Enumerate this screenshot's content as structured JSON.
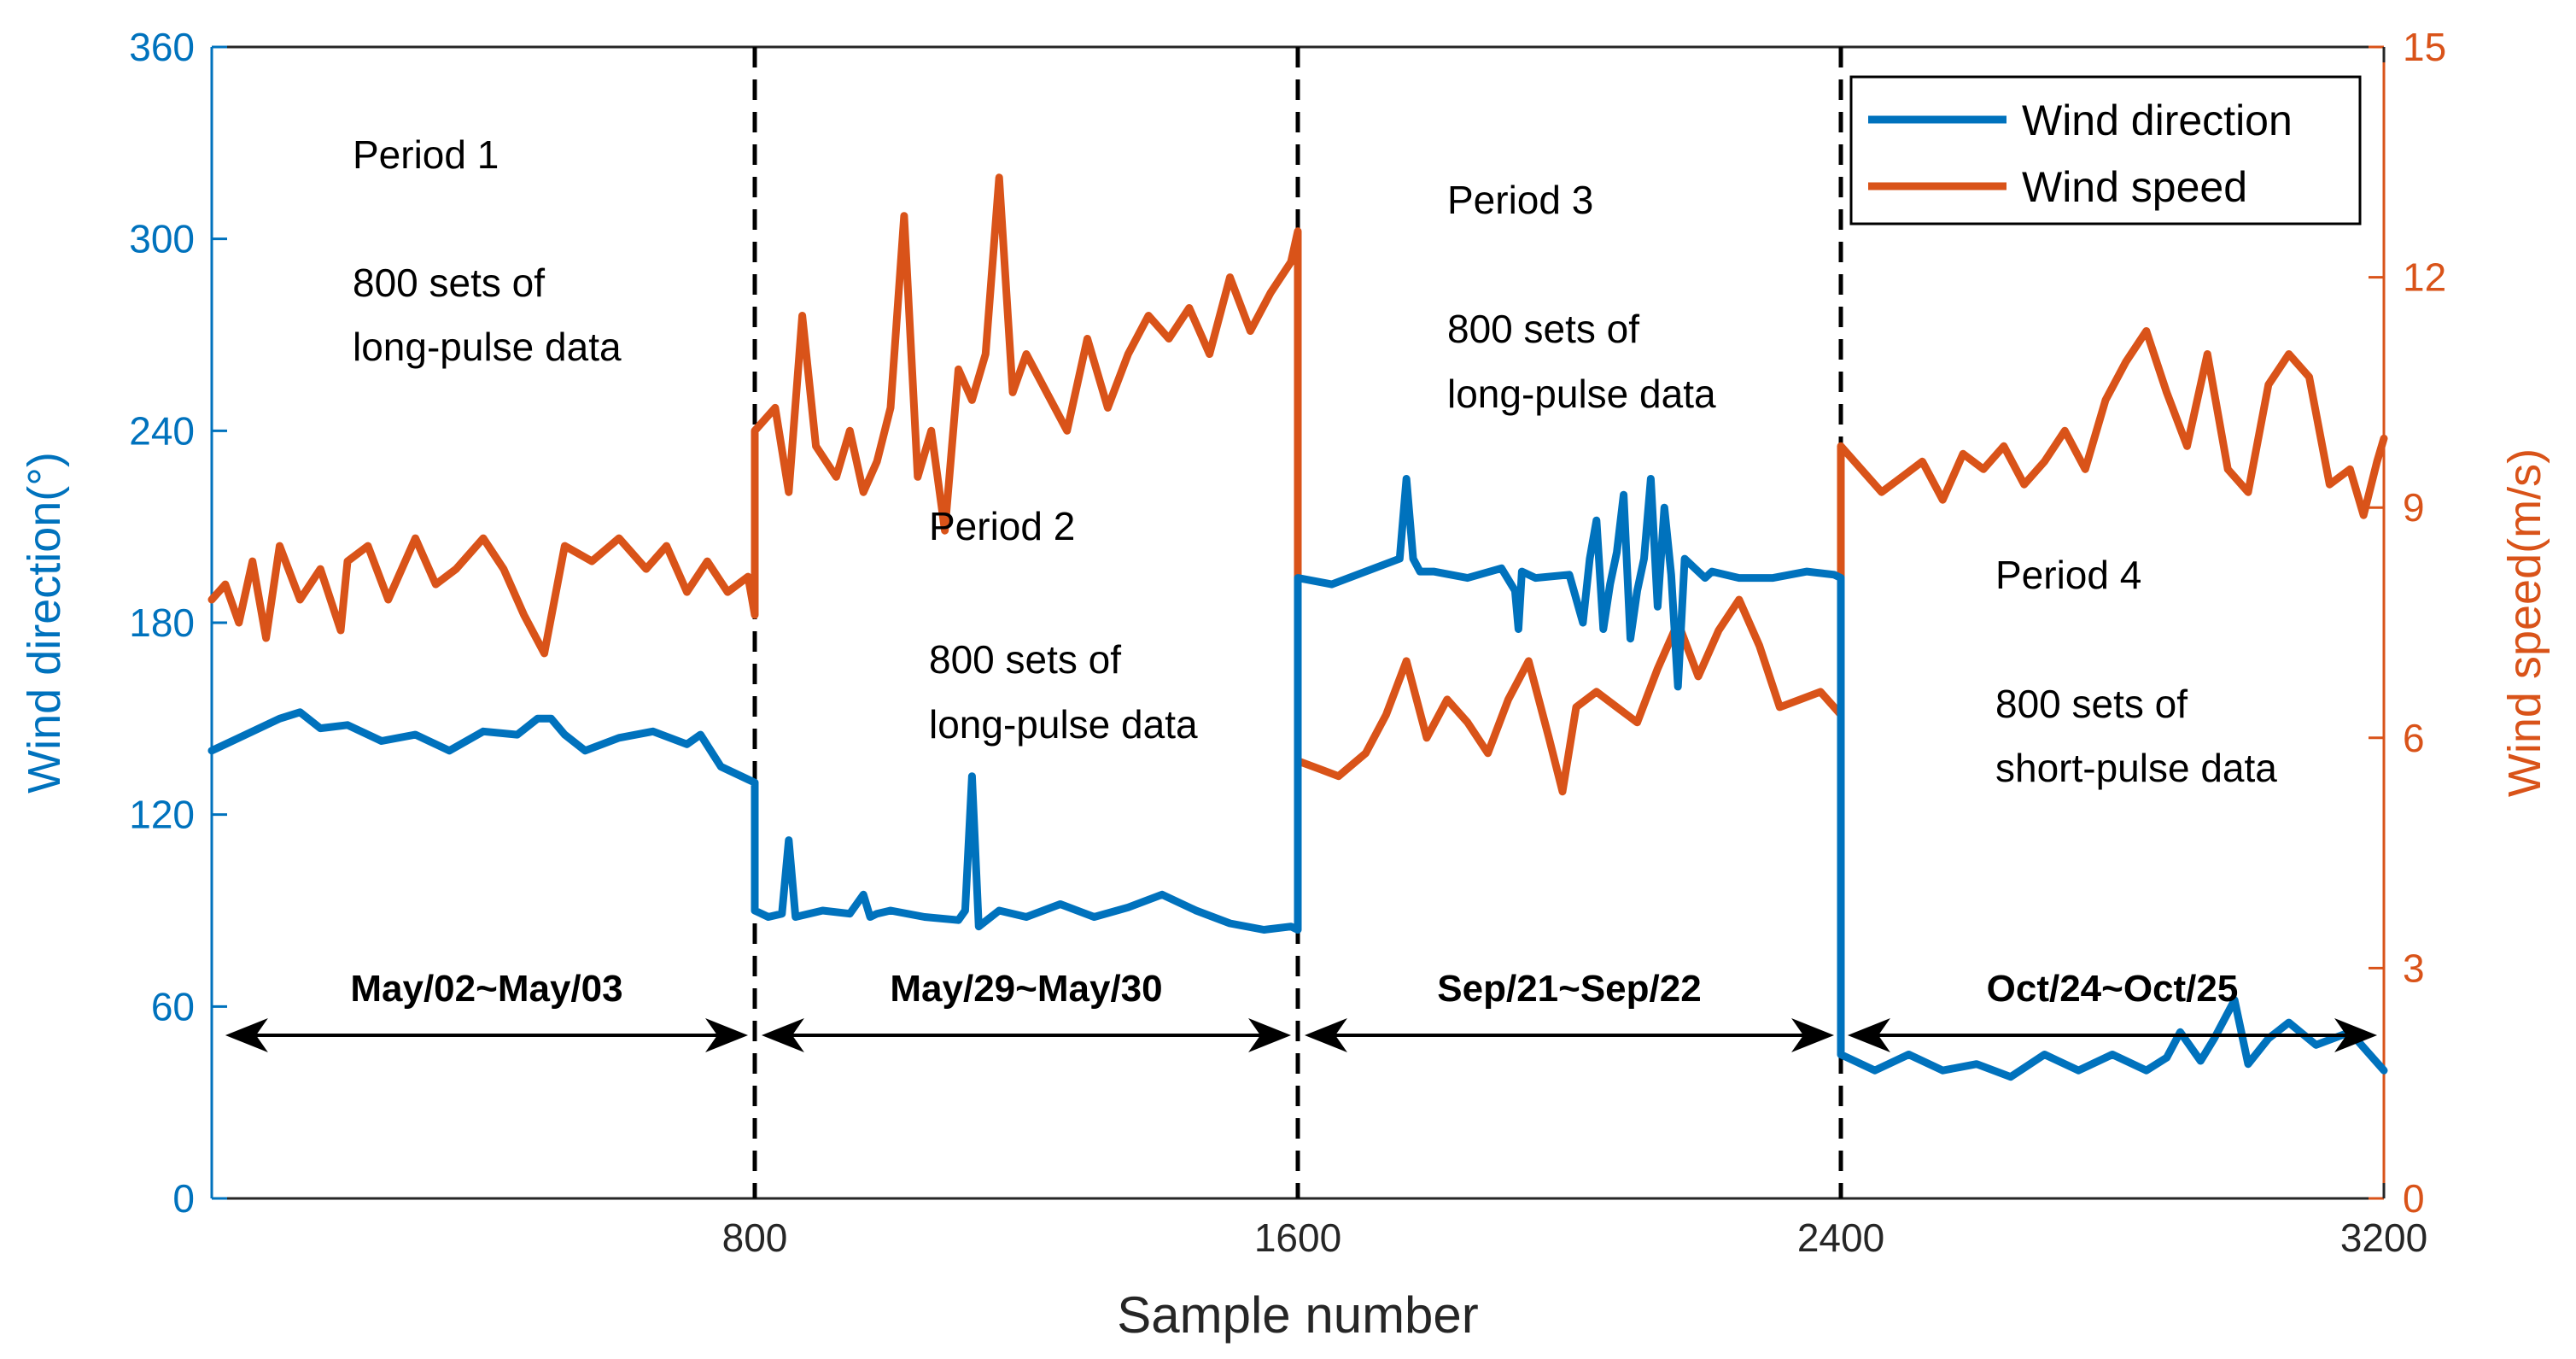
{
  "chart_data": {
    "type": "line",
    "xlabel": "Sample number",
    "ylabel_left": "Wind direction(°)",
    "ylabel_right": "Wind speed(m/s)",
    "xlim": [
      0,
      3200
    ],
    "ylim_left": [
      0,
      360
    ],
    "ylim_right": [
      0,
      15
    ],
    "xticks": [
      800,
      1600,
      2400,
      3200
    ],
    "yticks_left": [
      0,
      60,
      120,
      180,
      240,
      300,
      360
    ],
    "yticks_right": [
      0,
      3,
      6,
      9,
      12,
      15
    ],
    "dividers": [
      800,
      1600,
      2400
    ],
    "series": [
      {
        "name": "Wind direction",
        "axis": "left",
        "color": "#0072BD",
        "x": [
          0,
          50,
          80,
          100,
          130,
          160,
          200,
          250,
          300,
          350,
          400,
          450,
          480,
          500,
          520,
          550,
          600,
          650,
          700,
          720,
          750,
          790,
          800,
          800,
          820,
          840,
          850,
          860,
          900,
          940,
          960,
          970,
          980,
          1000,
          1050,
          1100,
          1110,
          1120,
          1130,
          1160,
          1200,
          1250,
          1300,
          1350,
          1400,
          1450,
          1500,
          1550,
          1590,
          1600,
          1600,
          1650,
          1700,
          1750,
          1760,
          1770,
          1780,
          1800,
          1850,
          1900,
          1920,
          1925,
          1930,
          1950,
          2000,
          2020,
          2030,
          2040,
          2050,
          2060,
          2070,
          2080,
          2090,
          2100,
          2110,
          2120,
          2130,
          2140,
          2150,
          2160,
          2170,
          2190,
          2200,
          2210,
          2250,
          2300,
          2350,
          2390,
          2400,
          2400,
          2450,
          2500,
          2550,
          2600,
          2650,
          2700,
          2750,
          2800,
          2850,
          2880,
          2900,
          2930,
          2950,
          2980,
          3000,
          3030,
          3060,
          3100,
          3150,
          3200
        ],
        "values": [
          140,
          145,
          148,
          150,
          152,
          147,
          148,
          143,
          145,
          140,
          146,
          145,
          150,
          150,
          145,
          140,
          144,
          146,
          142,
          145,
          135,
          131,
          130,
          90,
          88,
          89,
          112,
          88,
          90,
          89,
          95,
          88,
          89,
          90,
          88,
          87,
          90,
          132,
          85,
          90,
          88,
          92,
          88,
          91,
          95,
          90,
          86,
          84,
          85,
          84,
          194,
          192,
          196,
          200,
          225,
          200,
          196,
          196,
          194,
          197,
          190,
          178,
          196,
          194,
          195,
          180,
          200,
          212,
          178,
          192,
          202,
          220,
          175,
          190,
          200,
          225,
          185,
          216,
          195,
          160,
          200,
          196,
          194,
          196,
          194,
          194,
          196,
          195,
          194,
          45,
          40,
          45,
          40,
          42,
          38,
          45,
          40,
          45,
          40,
          44,
          52,
          43,
          50,
          62,
          42,
          50,
          55,
          48,
          52,
          40
        ]
      },
      {
        "name": "Wind speed",
        "axis": "right",
        "color": "#D95319",
        "x": [
          0,
          20,
          40,
          60,
          80,
          100,
          130,
          160,
          190,
          200,
          230,
          260,
          300,
          330,
          360,
          400,
          430,
          460,
          490,
          520,
          560,
          600,
          640,
          670,
          700,
          730,
          760,
          790,
          800,
          800,
          830,
          850,
          870,
          890,
          920,
          940,
          960,
          980,
          1000,
          1020,
          1040,
          1060,
          1080,
          1100,
          1120,
          1140,
          1160,
          1180,
          1200,
          1230,
          1260,
          1290,
          1320,
          1350,
          1380,
          1410,
          1440,
          1470,
          1500,
          1530,
          1560,
          1590,
          1600,
          1600,
          1630,
          1660,
          1700,
          1730,
          1760,
          1790,
          1820,
          1850,
          1880,
          1910,
          1940,
          1970,
          1990,
          2010,
          2040,
          2070,
          2100,
          2130,
          2160,
          2190,
          2220,
          2250,
          2280,
          2310,
          2340,
          2370,
          2400,
          2400,
          2430,
          2460,
          2490,
          2520,
          2550,
          2580,
          2610,
          2640,
          2670,
          2700,
          2730,
          2760,
          2790,
          2820,
          2850,
          2880,
          2910,
          2940,
          2970,
          3000,
          3030,
          3060,
          3090,
          3120,
          3150,
          3170,
          3190,
          3200
        ],
        "values": [
          7.8,
          8.0,
          7.5,
          8.3,
          7.3,
          8.5,
          7.8,
          8.2,
          7.4,
          8.3,
          8.5,
          7.8,
          8.6,
          8.0,
          8.2,
          8.6,
          8.2,
          7.6,
          7.1,
          8.5,
          8.3,
          8.6,
          8.2,
          8.5,
          7.9,
          8.3,
          7.9,
          8.1,
          7.6,
          10.0,
          10.3,
          9.2,
          11.5,
          9.8,
          9.4,
          10.0,
          9.2,
          9.6,
          10.3,
          12.8,
          9.4,
          10.0,
          8.7,
          10.8,
          10.4,
          11.0,
          13.3,
          10.5,
          11.0,
          10.5,
          10.0,
          11.2,
          10.3,
          11.0,
          11.5,
          11.2,
          11.6,
          11.0,
          12.0,
          11.3,
          11.8,
          12.2,
          12.6,
          5.7,
          5.6,
          5.5,
          5.8,
          6.3,
          7.0,
          6.0,
          6.5,
          6.2,
          5.8,
          6.5,
          7.0,
          6.0,
          5.3,
          6.4,
          6.6,
          6.4,
          6.2,
          6.9,
          7.5,
          6.8,
          7.4,
          7.8,
          7.2,
          6.4,
          6.5,
          6.6,
          6.3,
          9.8,
          9.5,
          9.2,
          9.4,
          9.6,
          9.1,
          9.7,
          9.5,
          9.8,
          9.3,
          9.6,
          10.0,
          9.5,
          10.4,
          10.9,
          11.3,
          10.5,
          9.8,
          11.0,
          9.5,
          9.2,
          10.6,
          11.0,
          10.7,
          9.3,
          9.5,
          8.9,
          9.6,
          9.9
        ]
      }
    ],
    "legend": {
      "placement": "top-right",
      "entries": [
        "Wind direction",
        "Wind speed"
      ]
    },
    "annotations": {
      "period1": [
        "Period 1",
        "800 sets of",
        "long-pulse data"
      ],
      "period2": [
        "Period 2",
        "800 sets of",
        "long-pulse data"
      ],
      "period3": [
        "Period 3",
        "800 sets of",
        "long-pulse data"
      ],
      "period4": [
        "Period 4",
        "800 sets of",
        "short-pulse data"
      ]
    },
    "date_ranges": [
      {
        "label": "May/02~May/03",
        "from": 20,
        "to": 790
      },
      {
        "label": "May/29~May/30",
        "from": 810,
        "to": 1590
      },
      {
        "label": "Sep/21~Sep/22",
        "from": 1610,
        "to": 2390
      },
      {
        "label": "Oct/24~Oct/25",
        "from": 2410,
        "to": 3190
      }
    ]
  }
}
